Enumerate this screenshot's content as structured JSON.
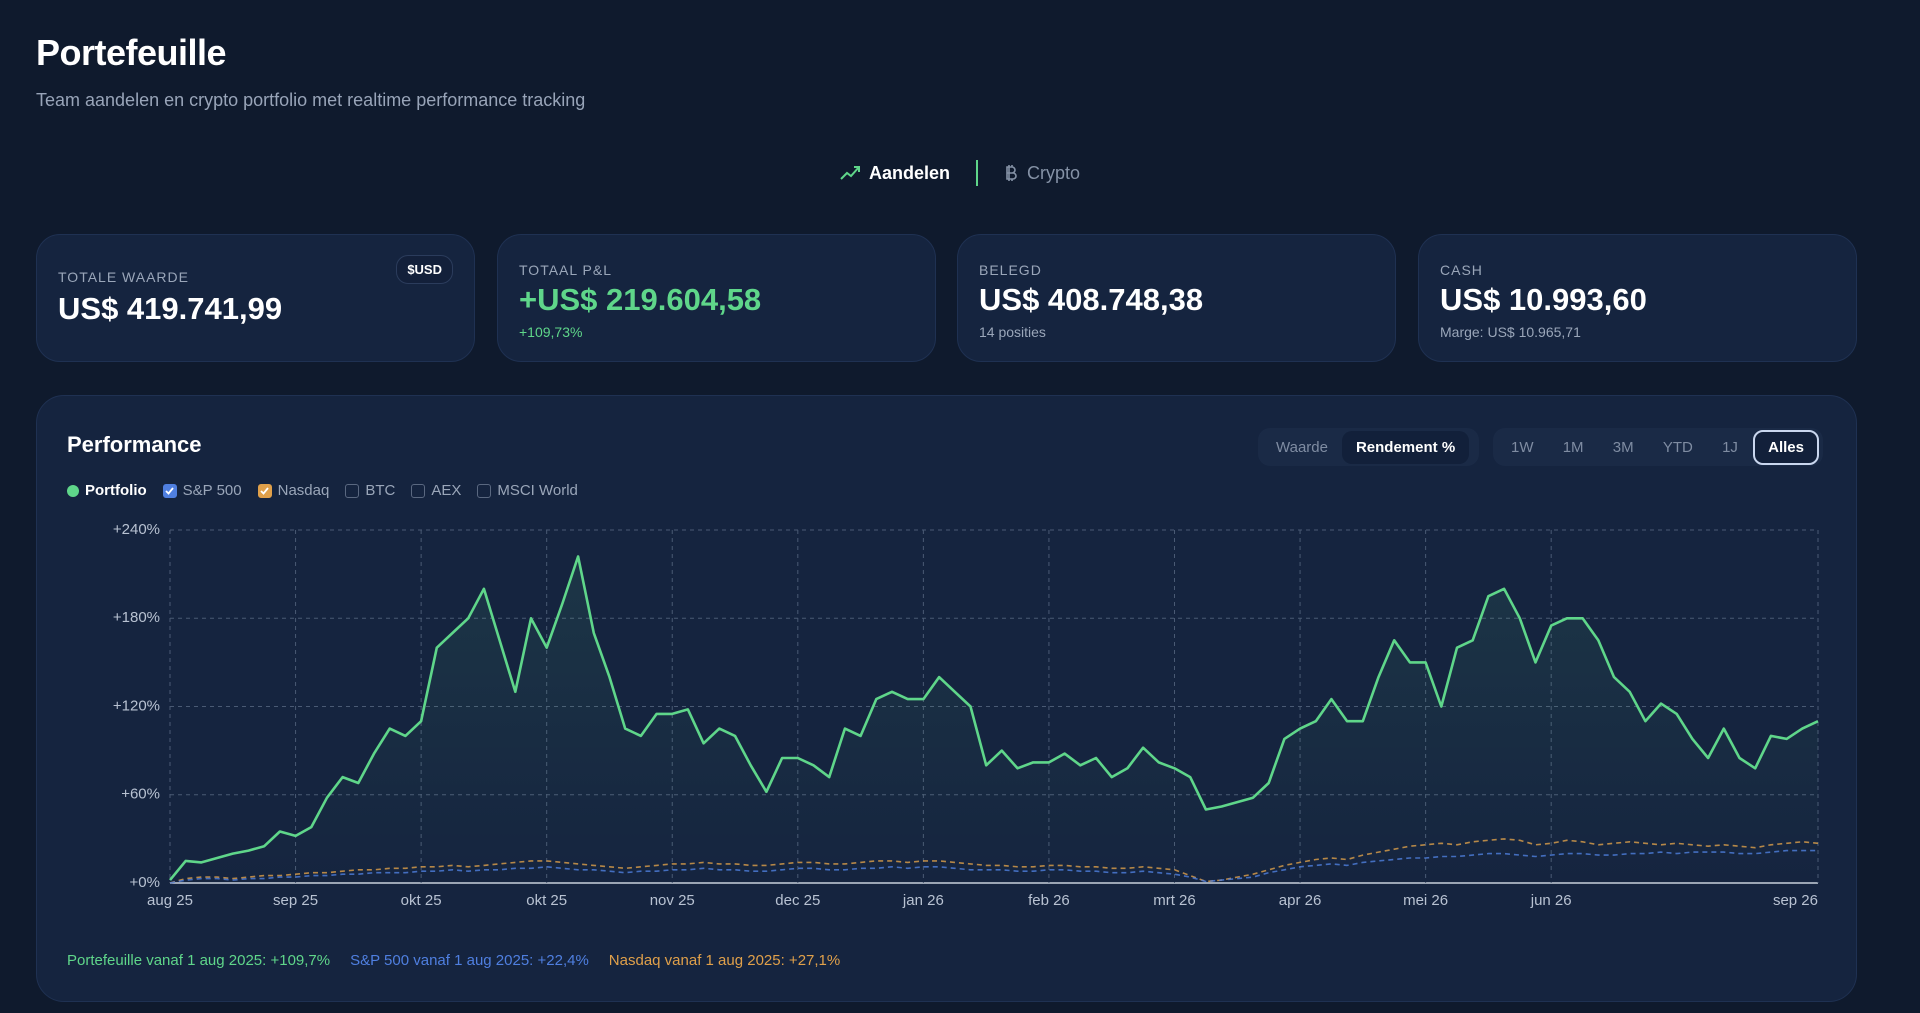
{
  "header": {
    "title": "Portefeuille",
    "subtitle": "Team aandelen en crypto portfolio met realtime performance tracking"
  },
  "tabs": [
    "Aandelen",
    "Crypto"
  ],
  "cards": [
    {
      "label": "TOTALE WAARDE",
      "value": "US$ 419.741,99",
      "badge": "$USD"
    },
    {
      "label": "TOTAAL P&L",
      "value": "+US$ 219.604,58",
      "sub": "+109,73%"
    },
    {
      "label": "BELEGD",
      "value": "US$ 408.748,38",
      "sub": "14 posities"
    },
    {
      "label": "CASH",
      "value": "US$ 10.993,60",
      "sub": "Marge: US$ 10.965,71"
    }
  ],
  "view_toggle": [
    "Waarde",
    "Rendement %"
  ],
  "periods": [
    "1W",
    "1M",
    "3M",
    "YTD",
    "1J",
    "Alles"
  ],
  "footer": [
    "Portefeuille vanaf 1 aug 2025: +109,7%",
    "S&P 500 vanaf 1 aug 2025: +22,4%",
    "Nasdaq vanaf 1 aug 2025: +27,1%"
  ],
  "chart_data": {
    "type": "line",
    "title": "Performance",
    "categories": [
      "aug 25",
      null,
      null,
      null,
      null,
      null,
      null,
      null,
      "sep 25",
      null,
      null,
      null,
      null,
      null,
      null,
      null,
      "okt 25",
      null,
      null,
      null,
      null,
      null,
      null,
      null,
      "okt 25",
      null,
      null,
      null,
      null,
      null,
      null,
      null,
      "nov 25",
      null,
      null,
      null,
      null,
      null,
      null,
      null,
      "dec 25",
      null,
      null,
      null,
      null,
      null,
      null,
      null,
      "jan 26",
      null,
      null,
      null,
      null,
      null,
      null,
      null,
      "feb 26",
      null,
      null,
      null,
      null,
      null,
      null,
      null,
      "mrt 26",
      null,
      null,
      null,
      null,
      null,
      null,
      null,
      "apr 26",
      null,
      null,
      null,
      null,
      null,
      null,
      null,
      "mei 26",
      null,
      null,
      null,
      null,
      null,
      null,
      null,
      "jun 26",
      null,
      null,
      null,
      null,
      null,
      null,
      null,
      null,
      null,
      null,
      null,
      null,
      null,
      null,
      null,
      null,
      "sep 26"
    ],
    "series": [
      {
        "name": "Portfolio",
        "color": "#5fd68a",
        "dashed": false,
        "values": [
          2,
          15,
          14,
          17,
          20,
          22,
          25,
          35,
          32,
          38,
          58,
          72,
          68,
          88,
          105,
          100,
          110,
          160,
          170,
          180,
          200,
          165,
          130,
          180,
          160,
          190,
          222,
          170,
          140,
          105,
          100,
          115,
          115,
          118,
          95,
          105,
          100,
          80,
          62,
          85,
          85,
          80,
          72,
          105,
          100,
          125,
          130,
          125,
          125,
          140,
          130,
          120,
          80,
          90,
          78,
          82,
          82,
          88,
          80,
          85,
          72,
          78,
          92,
          82,
          78,
          72,
          50,
          52,
          55,
          58,
          68,
          98,
          105,
          110,
          125,
          110,
          110,
          140,
          165,
          150,
          150,
          120,
          160,
          165,
          195,
          200,
          180,
          150,
          175,
          180,
          180,
          165,
          140,
          130,
          110,
          122,
          115,
          98,
          85,
          105,
          85,
          78,
          100,
          98,
          105,
          110
        ]
      },
      {
        "name": "S&P 500",
        "color": "#4f7fe0",
        "dashed": true,
        "values": [
          0,
          2,
          3,
          3,
          2,
          3,
          3,
          4,
          4,
          5,
          5,
          6,
          6,
          7,
          7,
          7,
          8,
          8,
          9,
          8,
          9,
          9,
          10,
          10,
          11,
          10,
          9,
          9,
          8,
          7,
          8,
          8,
          9,
          9,
          10,
          9,
          9,
          8,
          8,
          9,
          10,
          10,
          9,
          9,
          10,
          10,
          11,
          10,
          11,
          11,
          10,
          9,
          9,
          9,
          8,
          8,
          9,
          9,
          8,
          8,
          7,
          7,
          8,
          7,
          6,
          4,
          1,
          2,
          3,
          4,
          7,
          9,
          11,
          12,
          13,
          12,
          14,
          15,
          16,
          17,
          17,
          18,
          18,
          19,
          20,
          20,
          19,
          18,
          19,
          20,
          20,
          19,
          19,
          20,
          20,
          21,
          20,
          21,
          21,
          21,
          20,
          20,
          21,
          22,
          22,
          22
        ]
      },
      {
        "name": "Nasdaq",
        "color": "#e0a04a",
        "dashed": true,
        "values": [
          0,
          3,
          4,
          4,
          3,
          4,
          5,
          5,
          6,
          7,
          7,
          8,
          9,
          9,
          10,
          10,
          11,
          11,
          12,
          11,
          12,
          13,
          14,
          15,
          15,
          14,
          13,
          12,
          11,
          10,
          11,
          12,
          13,
          13,
          14,
          13,
          13,
          12,
          12,
          13,
          14,
          14,
          13,
          13,
          14,
          15,
          15,
          14,
          15,
          15,
          14,
          13,
          12,
          12,
          11,
          11,
          12,
          12,
          11,
          11,
          10,
          10,
          11,
          10,
          9,
          5,
          1,
          2,
          4,
          6,
          9,
          12,
          14,
          16,
          17,
          16,
          19,
          21,
          23,
          25,
          26,
          27,
          26,
          28,
          29,
          30,
          29,
          26,
          27,
          29,
          28,
          26,
          27,
          28,
          27,
          26,
          27,
          26,
          25,
          26,
          25,
          24,
          26,
          27,
          28,
          27
        ]
      }
    ],
    "other_benchmarks": [
      "BTC",
      "AEX",
      "MSCI World"
    ],
    "ylim": [
      0,
      240
    ],
    "yticks": [
      {
        "value": 0,
        "label": "+0%"
      },
      {
        "value": 60,
        "label": "+60%"
      },
      {
        "value": 120,
        "label": "+120%"
      },
      {
        "value": 180,
        "label": "+180%"
      },
      {
        "value": 240,
        "label": "+240%"
      }
    ],
    "grid": true
  }
}
